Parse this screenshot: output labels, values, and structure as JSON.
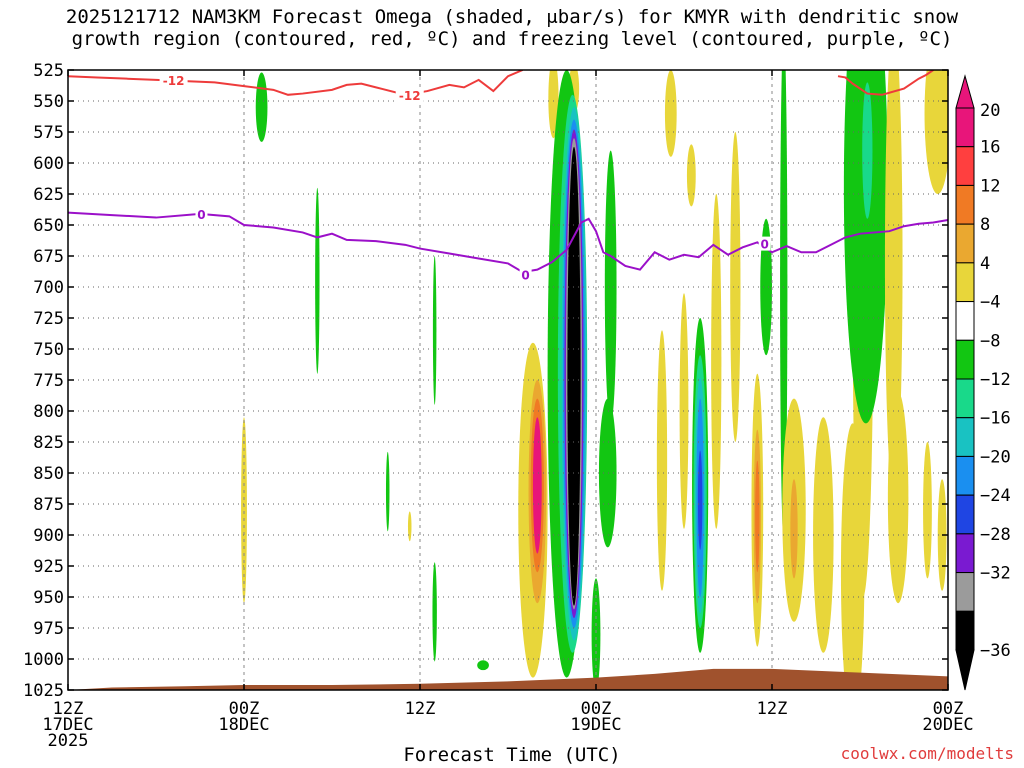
{
  "title": {
    "line1": "2025121712 NAM3KM Forecast Omega (shaded, μbar/s) for KMYR with dendritic snow",
    "line2": "growth region (contoured, red, ºC) and freezing level (contoured, purple, ºC)"
  },
  "credit": "coolwx.com/modelts",
  "chart_data": {
    "type": "heatmap",
    "xlabel": "Forecast Time (UTC)",
    "ylabel": "",
    "y_reversed": true,
    "ylim": [
      1025,
      525
    ],
    "y_ticks": [
      525,
      550,
      575,
      600,
      625,
      650,
      675,
      700,
      725,
      750,
      775,
      800,
      825,
      850,
      875,
      900,
      925,
      950,
      975,
      1000,
      1025
    ],
    "xlim_hours": [
      0,
      60
    ],
    "x_ticks": [
      {
        "hour": 0,
        "line1": "12Z",
        "line2": "17DEC",
        "line3": "2025"
      },
      {
        "hour": 12,
        "line1": "00Z",
        "line2": "18DEC",
        "line3": ""
      },
      {
        "hour": 24,
        "line1": "12Z",
        "line2": "",
        "line3": ""
      },
      {
        "hour": 36,
        "line1": "00Z",
        "line2": "19DEC",
        "line3": ""
      },
      {
        "hour": 48,
        "line1": "12Z",
        "line2": "",
        "line3": ""
      },
      {
        "hour": 60,
        "line1": "00Z",
        "line2": "20DEC",
        "line3": ""
      }
    ],
    "grid": true,
    "colorbar": {
      "labels": [
        "20",
        "16",
        "12",
        "8",
        "4",
        "−4",
        "−8",
        "−12",
        "−16",
        "−20",
        "−24",
        "−28",
        "−32",
        "−36"
      ],
      "colors": [
        "#e8157a",
        "#ff3f3f",
        "#f07a24",
        "#eaa830",
        "#e8d63a",
        "#ffffff",
        "#12c612",
        "#19d98a",
        "#19c2c2",
        "#1a8ff0",
        "#1f45e3",
        "#7a1ad1",
        "#9b9b9b",
        "#000000"
      ],
      "top_arrow_color": "#e8157a",
      "bottom_arrow_color": "#000000"
    },
    "contours": [
      {
        "level": "-12",
        "color": "#ee3b3b",
        "points": [
          [
            0,
            530
          ],
          [
            2,
            531
          ],
          [
            4,
            532
          ],
          [
            6,
            533
          ],
          [
            8,
            534
          ],
          [
            10,
            535
          ],
          [
            12,
            538
          ],
          [
            14,
            541
          ],
          [
            15,
            545
          ],
          [
            16,
            544
          ],
          [
            18,
            541
          ],
          [
            19,
            537
          ],
          [
            20,
            536
          ],
          [
            21,
            539
          ],
          [
            23,
            545
          ],
          [
            24.5,
            542
          ],
          [
            26,
            537
          ],
          [
            27,
            539
          ],
          [
            28,
            533
          ],
          [
            29,
            542
          ],
          [
            30,
            530
          ],
          [
            31,
            525
          ]
        ]
      },
      {
        "level": "-12",
        "color": "#ee3b3b",
        "points": [
          [
            59,
            525
          ],
          [
            58.5,
            529
          ],
          [
            58,
            532
          ],
          [
            57,
            540
          ],
          [
            55.5,
            545
          ],
          [
            54.5,
            544
          ],
          [
            53.5,
            536
          ],
          [
            53,
            531
          ],
          [
            52.5,
            530
          ]
        ]
      },
      {
        "level": "0",
        "color": "#9b10c9",
        "points": [
          [
            0,
            640
          ],
          [
            3,
            642
          ],
          [
            6,
            644
          ],
          [
            9,
            641
          ],
          [
            11,
            643
          ],
          [
            12,
            650
          ],
          [
            14,
            652
          ],
          [
            16,
            656
          ],
          [
            17,
            660
          ],
          [
            18,
            657
          ],
          [
            19,
            662
          ],
          [
            21,
            663
          ],
          [
            23,
            666
          ],
          [
            24,
            669
          ],
          [
            26,
            673
          ],
          [
            28,
            677
          ],
          [
            30,
            681
          ],
          [
            31,
            688
          ],
          [
            32,
            686
          ],
          [
            33,
            680
          ],
          [
            34,
            670
          ],
          [
            35,
            648
          ],
          [
            35.5,
            645
          ],
          [
            36,
            655
          ],
          [
            36.5,
            672
          ],
          [
            37,
            675
          ],
          [
            38,
            683
          ],
          [
            39,
            686
          ],
          [
            40,
            672
          ],
          [
            41,
            678
          ],
          [
            42,
            674
          ],
          [
            43,
            676
          ],
          [
            44,
            666
          ],
          [
            45,
            674
          ],
          [
            46,
            668
          ],
          [
            47,
            664
          ],
          [
            48,
            672
          ],
          [
            49,
            667
          ],
          [
            50,
            672
          ],
          [
            51,
            672
          ],
          [
            52,
            666
          ],
          [
            53,
            660
          ],
          [
            54,
            657
          ],
          [
            55,
            656
          ],
          [
            56,
            655
          ],
          [
            57,
            651
          ],
          [
            58,
            649
          ],
          [
            59,
            648
          ],
          [
            60,
            646
          ]
        ]
      }
    ],
    "contour_labels": [
      {
        "text": "-12",
        "hour": 7.2,
        "hpa": 533,
        "color": "#ee3b3b"
      },
      {
        "text": "-12",
        "hour": 23.3,
        "hpa": 545,
        "color": "#ee3b3b"
      },
      {
        "text": "0",
        "hour": 9.1,
        "hpa": 641,
        "color": "#9b10c9"
      },
      {
        "text": "0",
        "hour": 31.2,
        "hpa": 690,
        "color": "#9b10c9"
      },
      {
        "text": "0",
        "hour": 47.5,
        "hpa": 665,
        "color": "#9b10c9"
      }
    ],
    "shading": [
      {
        "value": -8,
        "hour": 13.2,
        "hpa": 555,
        "w": 0.4,
        "h": 28
      },
      {
        "value": -8,
        "hour": 17.0,
        "hpa": 695,
        "w": 0.15,
        "h": 75
      },
      {
        "value": -8,
        "hour": 25.0,
        "hpa": 735,
        "w": 0.12,
        "h": 60
      },
      {
        "value": -8,
        "hour": 21.8,
        "hpa": 865,
        "w": 0.12,
        "h": 32
      },
      {
        "value": -8,
        "hour": 25.0,
        "hpa": 962,
        "w": 0.15,
        "h": 40
      },
      {
        "value": -8,
        "hour": 28.3,
        "hpa": 1005,
        "w": 0.4,
        "h": 4
      },
      {
        "value": 4,
        "hour": 12.0,
        "hpa": 880,
        "w": 0.2,
        "h": 75
      },
      {
        "value": 4,
        "hour": 23.3,
        "hpa": 893,
        "w": 0.12,
        "h": 12
      },
      {
        "value": 4,
        "hour": 33.1,
        "hpa": 548,
        "w": 0.35,
        "h": 32
      },
      {
        "value": 4,
        "hour": 34.5,
        "hpa": 540,
        "w": 0.35,
        "h": 20
      },
      {
        "value": 4,
        "hour": 31.7,
        "hpa": 880,
        "w": 1.0,
        "h": 135
      },
      {
        "value": 8,
        "hour": 32.0,
        "hpa": 865,
        "w": 0.6,
        "h": 90
      },
      {
        "value": 12,
        "hour": 32.0,
        "hpa": 860,
        "w": 0.45,
        "h": 70
      },
      {
        "value": 20,
        "hour": 32.0,
        "hpa": 860,
        "w": 0.3,
        "h": 55
      },
      {
        "value": -8,
        "hour": 34.0,
        "hpa": 770,
        "w": 1.3,
        "h": 245
      },
      {
        "value": -12,
        "hour": 34.4,
        "hpa": 770,
        "w": 1.0,
        "h": 225
      },
      {
        "value": -16,
        "hour": 34.5,
        "hpa": 770,
        "w": 0.85,
        "h": 215
      },
      {
        "value": -20,
        "hour": 34.5,
        "hpa": 770,
        "w": 0.75,
        "h": 205
      },
      {
        "value": -28,
        "hour": 34.5,
        "hpa": 770,
        "w": 0.65,
        "h": 197
      },
      {
        "value": -32,
        "hour": 34.5,
        "hpa": 770,
        "w": 0.55,
        "h": 190
      },
      {
        "value": -36,
        "hour": 34.5,
        "hpa": 772,
        "w": 0.45,
        "h": 185
      },
      {
        "value": -8,
        "hour": 37.0,
        "hpa": 700,
        "w": 0.4,
        "h": 110
      },
      {
        "value": -8,
        "hour": 36.8,
        "hpa": 850,
        "w": 0.6,
        "h": 60
      },
      {
        "value": -8,
        "hour": 36.0,
        "hpa": 980,
        "w": 0.3,
        "h": 45
      },
      {
        "value": 4,
        "hour": 41.1,
        "hpa": 560,
        "w": 0.4,
        "h": 35
      },
      {
        "value": 4,
        "hour": 42.5,
        "hpa": 610,
        "w": 0.3,
        "h": 25
      },
      {
        "value": 4,
        "hour": 42.0,
        "hpa": 800,
        "w": 0.3,
        "h": 95
      },
      {
        "value": 4,
        "hour": 40.5,
        "hpa": 840,
        "w": 0.35,
        "h": 105
      },
      {
        "value": 4,
        "hour": 44.2,
        "hpa": 760,
        "w": 0.35,
        "h": 135
      },
      {
        "value": 4,
        "hour": 45.5,
        "hpa": 700,
        "w": 0.35,
        "h": 125
      },
      {
        "value": 4,
        "hour": 47.0,
        "hpa": 880,
        "w": 0.4,
        "h": 110
      },
      {
        "value": 8,
        "hour": 47.0,
        "hpa": 885,
        "w": 0.25,
        "h": 70
      },
      {
        "value": 12,
        "hour": 47.0,
        "hpa": 885,
        "w": 0.15,
        "h": 45
      },
      {
        "value": -8,
        "hour": 43.1,
        "hpa": 860,
        "w": 0.55,
        "h": 135
      },
      {
        "value": -12,
        "hour": 43.1,
        "hpa": 865,
        "w": 0.45,
        "h": 110
      },
      {
        "value": -16,
        "hour": 43.1,
        "hpa": 868,
        "w": 0.35,
        "h": 95
      },
      {
        "value": -20,
        "hour": 43.1,
        "hpa": 870,
        "w": 0.25,
        "h": 80
      },
      {
        "value": -24,
        "hour": 43.1,
        "hpa": 872,
        "w": 0.15,
        "h": 40
      },
      {
        "value": -8,
        "hour": 47.6,
        "hpa": 700,
        "w": 0.4,
        "h": 55
      },
      {
        "value": -8,
        "hour": 48.8,
        "hpa": 700,
        "w": 0.25,
        "h": 205
      },
      {
        "value": 4,
        "hour": 49.5,
        "hpa": 880,
        "w": 0.8,
        "h": 90
      },
      {
        "value": 8,
        "hour": 49.5,
        "hpa": 895,
        "w": 0.25,
        "h": 40
      },
      {
        "value": 4,
        "hour": 51.5,
        "hpa": 900,
        "w": 0.7,
        "h": 95
      },
      {
        "value": 4,
        "hour": 53.5,
        "hpa": 930,
        "w": 0.8,
        "h": 120
      },
      {
        "value": 4,
        "hour": 54.2,
        "hpa": 720,
        "w": 0.7,
        "h": 230
      },
      {
        "value": -8,
        "hour": 54.4,
        "hpa": 620,
        "w": 1.5,
        "h": 190
      },
      {
        "value": -12,
        "hour": 54.5,
        "hpa": 590,
        "w": 0.35,
        "h": 55
      },
      {
        "value": 4,
        "hour": 56.3,
        "hpa": 680,
        "w": 0.6,
        "h": 190
      },
      {
        "value": 4,
        "hour": 56.6,
        "hpa": 870,
        "w": 0.7,
        "h": 85
      },
      {
        "value": 4,
        "hour": 58.6,
        "hpa": 880,
        "w": 0.3,
        "h": 55
      },
      {
        "value": 4,
        "hour": 59.6,
        "hpa": 900,
        "w": 0.3,
        "h": 45
      },
      {
        "value": 4,
        "hour": 59.3,
        "hpa": 560,
        "w": 0.9,
        "h": 65
      }
    ],
    "terrain": {
      "color": "#a0522d",
      "points": [
        [
          0,
          1025
        ],
        [
          3,
          1023
        ],
        [
          8,
          1022
        ],
        [
          12,
          1021
        ],
        [
          18,
          1021
        ],
        [
          24,
          1020
        ],
        [
          30,
          1018
        ],
        [
          36,
          1015
        ],
        [
          40,
          1012
        ],
        [
          44,
          1008
        ],
        [
          48,
          1008
        ],
        [
          52,
          1010
        ],
        [
          56,
          1012
        ],
        [
          60,
          1014
        ]
      ]
    }
  }
}
